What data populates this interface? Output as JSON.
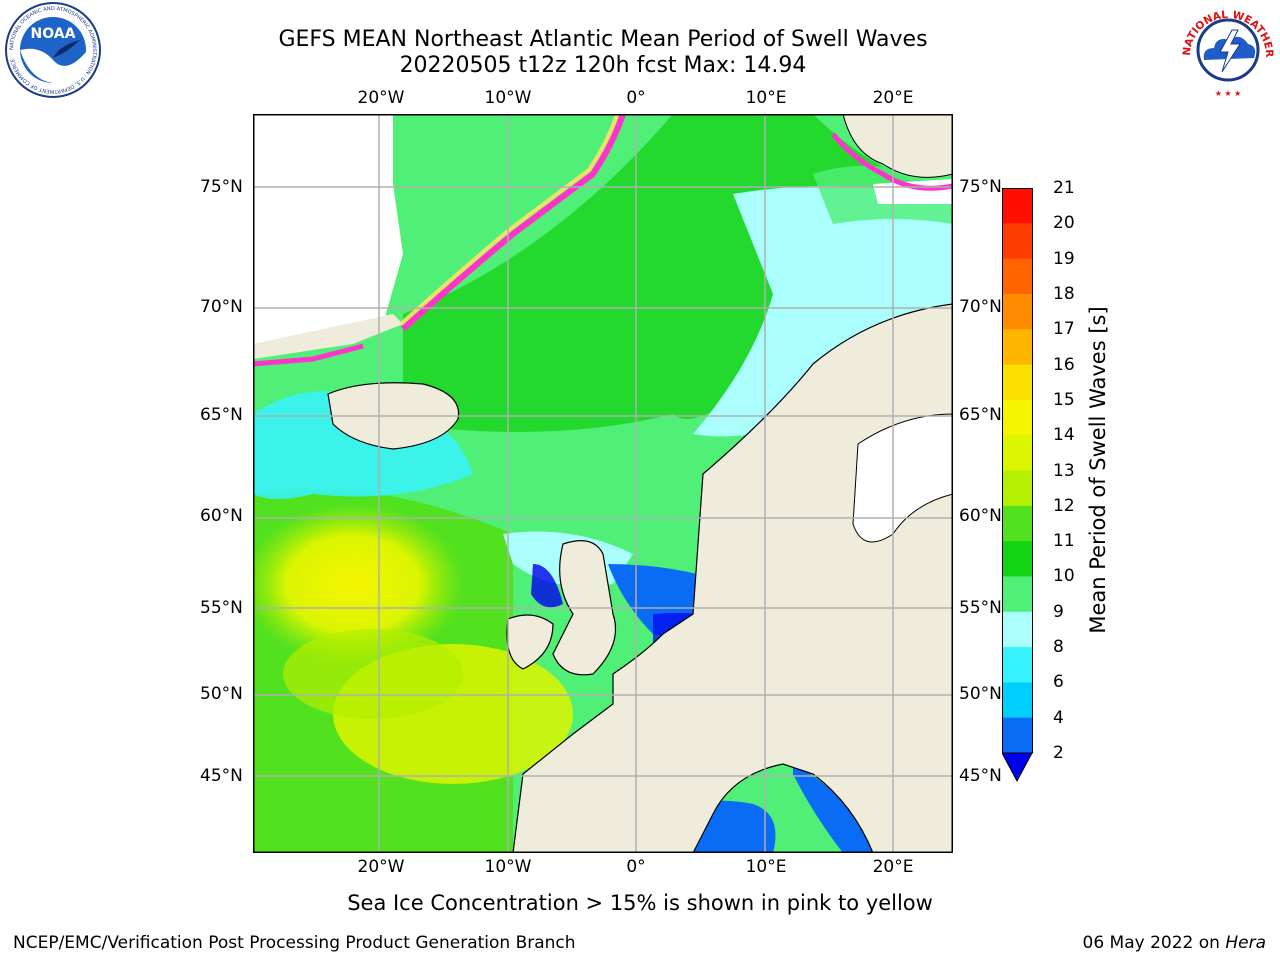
{
  "title_line1": "GEFS MEAN Northeast Atlantic Mean Period of Swell Waves",
  "title_line2": "20220505 t12z 120h fcst   Max: 14.94",
  "lon_labels": [
    "20°W",
    "10°W",
    "0°",
    "10°E",
    "20°E"
  ],
  "lat_labels": [
    "75°N",
    "70°N",
    "65°N",
    "60°N",
    "55°N",
    "50°N",
    "45°N"
  ],
  "colorbar": {
    "label": "Mean Period of Swell Waves [s]",
    "ticks": [
      "2",
      "4",
      "6",
      "8",
      "9",
      "10",
      "11",
      "12",
      "13",
      "14",
      "15",
      "16",
      "17",
      "18",
      "19",
      "20",
      "21"
    ],
    "colors": [
      "#0a6cf5",
      "#00cfff",
      "#37f3ff",
      "#aafffd",
      "#50ef78",
      "#14d214",
      "#52e11e",
      "#b4ee00",
      "#dcf500",
      "#f5f500",
      "#fae100",
      "#ffb600",
      "#ff8c00",
      "#ff6400",
      "#ff3c00",
      "#ff0f00"
    ],
    "extend_color": "#0000ee"
  },
  "land_color": "#efecdc",
  "ice_color_pink": "#ff33cc",
  "ice_color_yellow": "#ffe066",
  "caption": "Sea Ice Concentration > 15% is shown in pink to yellow",
  "footer_left": "NCEP/EMC/Verification Post Processing Product Generation Branch",
  "footer_date": "06 May 2022 on",
  "footer_host": "Hera",
  "logos": {
    "noaa_text": "NOAA",
    "noaa_ring": "NATIONAL OCEANIC AND ATMOSPHERIC ADMINISTRATION · U.S. DEPARTMENT OF COMMERCE",
    "nws_ring": "NATIONAL WEATHER SERVICE"
  }
}
